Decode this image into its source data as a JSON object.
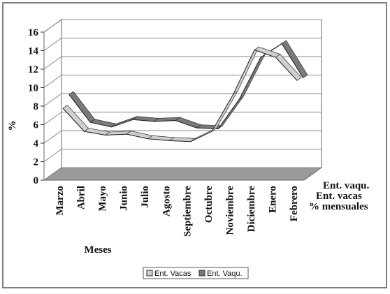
{
  "chart_data": {
    "type": "line3d",
    "y_label": "%",
    "x_label": "Meses",
    "depth_labels": [
      "Ent. vaqu.",
      "Ent. vacas",
      "% mensuales"
    ],
    "categories": [
      "Marzo",
      "Abril",
      "Mayo",
      "Junio",
      "Julio",
      "Agosto",
      "Septiembre",
      "Octubre",
      "Noviembre",
      "Diciembre",
      "Enero",
      "Febrero"
    ],
    "series": [
      {
        "name": "Ent. Vacas",
        "color": "#cfcfcf",
        "values": [
          7.5,
          5.0,
          4.6,
          4.7,
          4.2,
          4.0,
          3.9,
          5.0,
          9.0,
          13.8,
          13.0,
          10.5
        ]
      },
      {
        "name": "Ent. Vaqu.",
        "color": "#7a7a7a",
        "values": [
          8.5,
          5.5,
          5.0,
          5.8,
          5.6,
          5.7,
          4.9,
          4.8,
          8.0,
          12.5,
          14.0,
          10.3
        ]
      }
    ],
    "ylim": [
      0,
      16
    ],
    "yticks": [
      0,
      2,
      4,
      6,
      8,
      10,
      12,
      14,
      16
    ],
    "grid": true,
    "legend": "bottom"
  }
}
